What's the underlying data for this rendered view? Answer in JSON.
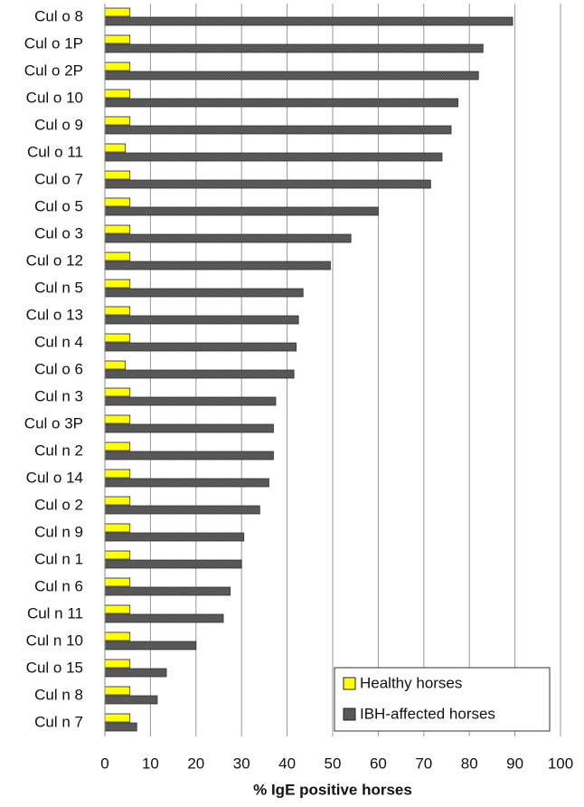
{
  "chart_data": {
    "type": "hbar",
    "x_label": "% IgE positive horses",
    "categories": [
      "Cul o 8",
      "Cul o 1P",
      "Cul o 2P",
      "Cul o 10",
      "Cul o 9",
      "Cul o 11",
      "Cul o 7",
      "Cul o 5",
      "Cul o 3",
      "Cul o 12",
      "Cul n 5",
      "Cul o 13",
      "Cul n 4",
      "Cul o 6",
      "Cul n 3",
      "Cul o 3P",
      "Cul n 2",
      "Cul o 14",
      "Cul o 2",
      "Cul n 9",
      "Cul n 1",
      "Cul n 6",
      "Cul n 11",
      "Cul n 10",
      "Cul o 15",
      "Cul n 8",
      "Cul n 7"
    ],
    "series": [
      {
        "name": "Healthy horses",
        "color": "#ffff00",
        "values": [
          5.5,
          5.5,
          5.5,
          5.5,
          5.5,
          4.5,
          5.5,
          5.5,
          5.5,
          5.5,
          5.5,
          5.5,
          5.5,
          4.5,
          5.5,
          5.5,
          5.5,
          5.5,
          5.5,
          5.5,
          5.5,
          5.5,
          5.5,
          5.5,
          5.5,
          5.5,
          5.5
        ]
      },
      {
        "name": "IBH-affected horses",
        "color": "#4d4d4d",
        "values": [
          89.5,
          83,
          82,
          77.5,
          76,
          74,
          71.5,
          60,
          54,
          49.5,
          43.5,
          42.5,
          42,
          41.5,
          37.5,
          37,
          37,
          36,
          34,
          30.5,
          30,
          27.5,
          26,
          20,
          13.5,
          11.5,
          7
        ]
      }
    ],
    "xlim": [
      0,
      100
    ],
    "xticks": [
      0,
      10,
      20,
      30,
      40,
      50,
      60,
      70,
      80,
      90,
      100
    ],
    "grid": true,
    "legend": "lower right"
  }
}
